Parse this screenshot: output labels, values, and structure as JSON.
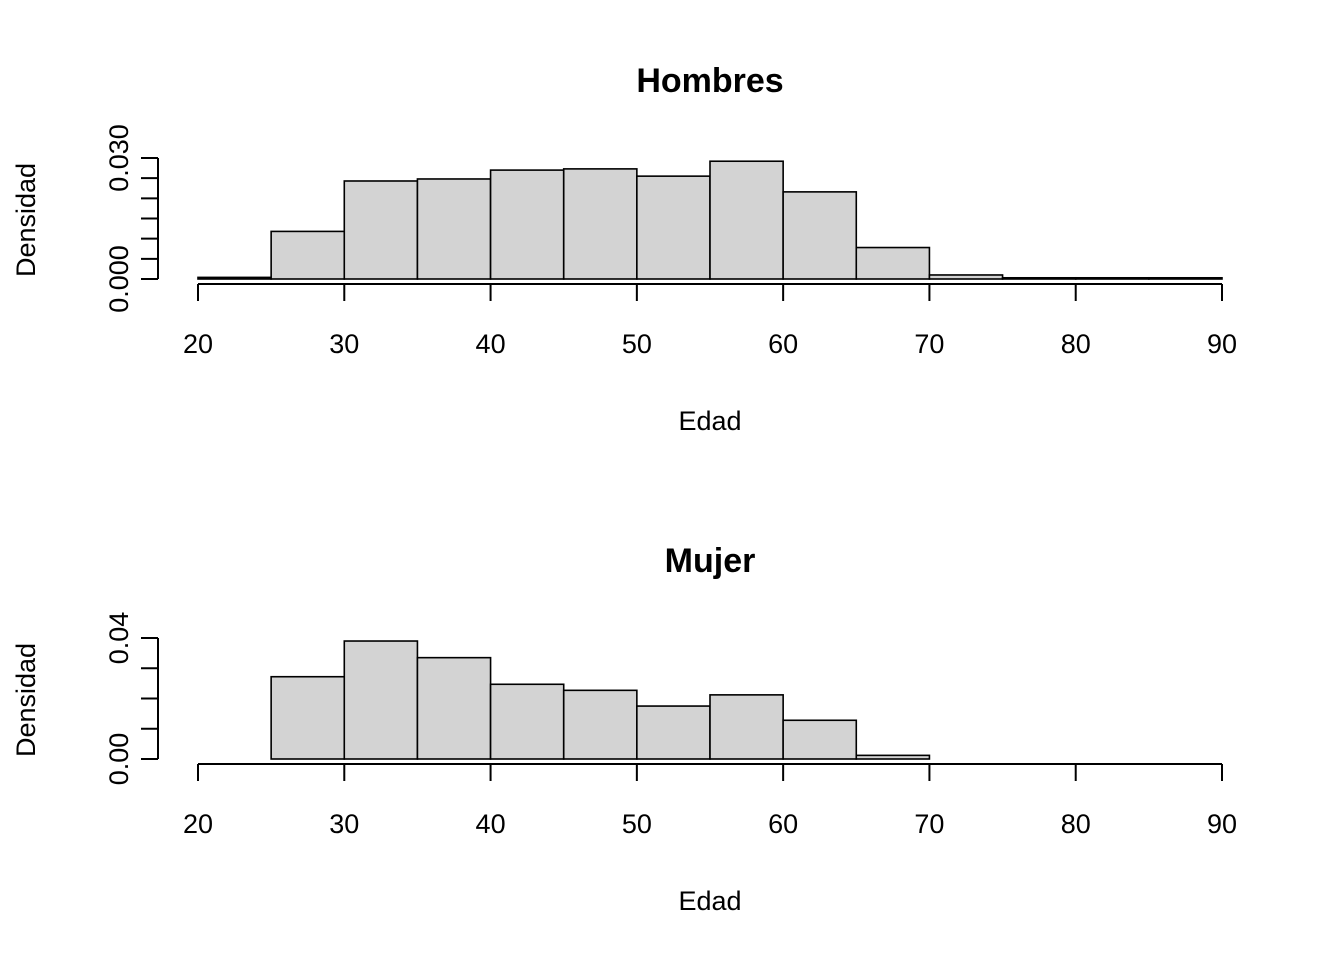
{
  "chart_data": [
    {
      "type": "bar",
      "title": "Hombres",
      "xlabel": "Edad",
      "ylabel": "Densidad",
      "bin_edges": [
        20,
        25,
        30,
        35,
        40,
        45,
        50,
        55,
        60,
        65,
        70,
        75,
        80,
        85,
        90
      ],
      "values": [
        0.0004,
        0.0118,
        0.0243,
        0.0248,
        0.027,
        0.0273,
        0.0255,
        0.0292,
        0.0216,
        0.0078,
        0.001,
        0.0003,
        0.0003,
        0.0003
      ],
      "xlim": [
        20,
        90
      ],
      "ylim": [
        0,
        0.03
      ],
      "x_ticks": [
        20,
        30,
        40,
        50,
        60,
        70,
        80,
        90
      ],
      "y_tick_values": [
        0,
        0.005,
        0.01,
        0.015,
        0.02,
        0.025,
        0.03
      ],
      "y_tick_labels": [
        "0.000",
        "0.030"
      ],
      "grid": false
    },
    {
      "type": "bar",
      "title": "Mujer",
      "xlabel": "Edad",
      "ylabel": "Densidad",
      "bin_edges": [
        20,
        25,
        30,
        35,
        40,
        45,
        50,
        55,
        60,
        65,
        70,
        75,
        80,
        85,
        90
      ],
      "values": [
        0,
        0.0272,
        0.039,
        0.0335,
        0.0247,
        0.0227,
        0.0175,
        0.0212,
        0.0128,
        0.0012,
        0,
        0,
        0,
        0
      ],
      "xlim": [
        20,
        90
      ],
      "ylim": [
        0,
        0.04
      ],
      "x_ticks": [
        20,
        30,
        40,
        50,
        60,
        70,
        80,
        90
      ],
      "y_tick_values": [
        0,
        0.01,
        0.02,
        0.03,
        0.04
      ],
      "y_tick_labels": [
        "0.00",
        "0.04"
      ],
      "grid": false
    }
  ]
}
